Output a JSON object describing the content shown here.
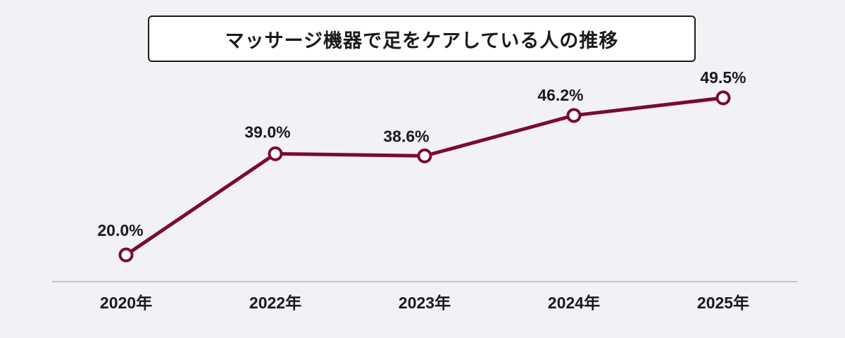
{
  "chart_data": {
    "type": "line",
    "title": "マッサージ機器で足をケアしている人の推移",
    "categories": [
      "2020年",
      "2022年",
      "2023年",
      "2024年",
      "2025年"
    ],
    "values": [
      20.0,
      39.0,
      38.6,
      46.2,
      49.5
    ],
    "value_labels": [
      "20.0%",
      "39.0%",
      "38.6%",
      "46.2%",
      "49.5%"
    ],
    "xlabel": "",
    "ylabel": "",
    "ylim": [
      0,
      50
    ],
    "grid": false,
    "colors": {
      "line": "#7a0a35",
      "marker_fill": "#ffffff",
      "axis": "#9a9a9a",
      "background": "#f2f1f5"
    }
  }
}
